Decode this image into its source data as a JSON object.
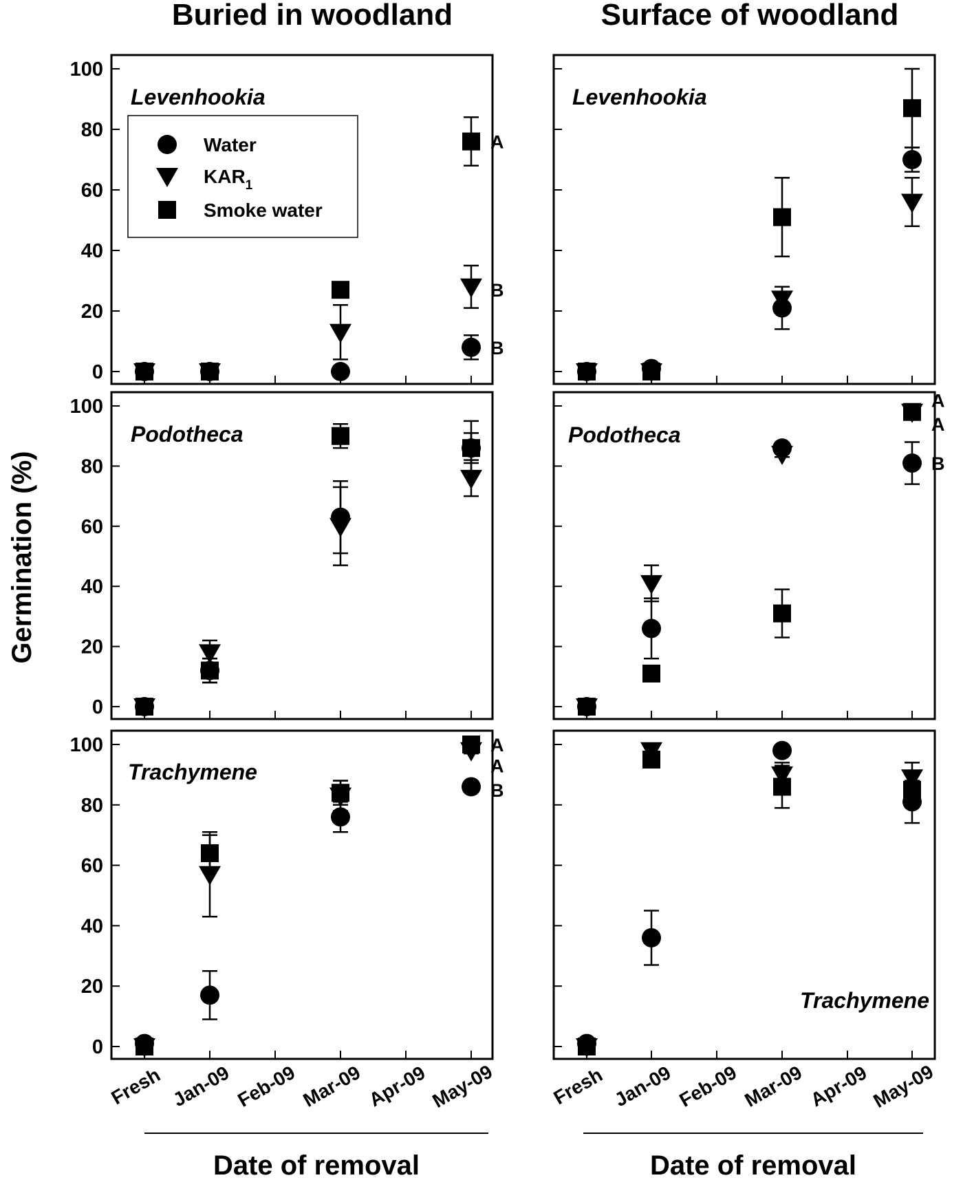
{
  "column_titles": [
    "Buried in woodland",
    "Surface of woodland"
  ],
  "y_axis_title": "Germination (%)",
  "x_axis_title": "Date of removal",
  "legend": {
    "entries": [
      {
        "label": "Water",
        "marker": "circle"
      },
      {
        "label": "KAR",
        "subscript": "1",
        "marker": "triangle-down"
      },
      {
        "label": "Smoke water",
        "marker": "square"
      }
    ]
  },
  "chart_data": [
    {
      "type": "scatter",
      "panel": "Buried in woodland / Levenhookia",
      "species": "Levenhookia",
      "categories": [
        "Fresh",
        "Jan-09",
        "Feb-09",
        "Mar-09",
        "Apr-09",
        "May-09"
      ],
      "ylim": [
        0,
        100
      ],
      "yticks": [
        0,
        20,
        40,
        60,
        80,
        100
      ],
      "series": [
        {
          "name": "Water",
          "marker": "circle",
          "x": [
            "Fresh",
            "Jan-09",
            "Mar-09",
            "May-09"
          ],
          "values": [
            0,
            0,
            0,
            8
          ],
          "err": [
            0,
            0,
            0,
            4
          ]
        },
        {
          "name": "KAR1",
          "marker": "triangle-down",
          "x": [
            "Fresh",
            "Jan-09",
            "Mar-09",
            "May-09"
          ],
          "values": [
            0,
            0,
            13,
            28
          ],
          "err": [
            0,
            0,
            9,
            7
          ]
        },
        {
          "name": "Smoke water",
          "marker": "square",
          "x": [
            "Fresh",
            "Jan-09",
            "Mar-09",
            "May-09"
          ],
          "values": [
            0,
            0,
            27,
            76
          ],
          "err": [
            0,
            0,
            2,
            8
          ]
        }
      ],
      "annotations": [
        {
          "x": "May-09",
          "y": 76,
          "text": "A"
        },
        {
          "x": "May-09",
          "y": 27,
          "text": "B"
        },
        {
          "x": "May-09",
          "y": 8,
          "text": "B"
        }
      ]
    },
    {
      "type": "scatter",
      "panel": "Surface of woodland / Levenhookia",
      "species": "Levenhookia",
      "categories": [
        "Fresh",
        "Jan-09",
        "Feb-09",
        "Mar-09",
        "Apr-09",
        "May-09"
      ],
      "ylim": [
        0,
        100
      ],
      "yticks": [
        0,
        20,
        40,
        60,
        80,
        100
      ],
      "series": [
        {
          "name": "Water",
          "marker": "circle",
          "x": [
            "Fresh",
            "Jan-09",
            "Mar-09",
            "May-09"
          ],
          "values": [
            0,
            1,
            21,
            70
          ],
          "err": [
            0,
            0,
            7,
            4
          ]
        },
        {
          "name": "KAR1",
          "marker": "triangle-down",
          "x": [
            "Fresh",
            "Jan-09",
            "Mar-09",
            "May-09"
          ],
          "values": [
            0,
            0,
            24,
            56
          ],
          "err": [
            0,
            0,
            4,
            8
          ]
        },
        {
          "name": "Smoke water",
          "marker": "square",
          "x": [
            "Fresh",
            "Jan-09",
            "Mar-09",
            "May-09"
          ],
          "values": [
            0,
            0,
            51,
            87
          ],
          "err": [
            0,
            0,
            13,
            13
          ]
        }
      ],
      "annotations": []
    },
    {
      "type": "scatter",
      "panel": "Buried in woodland / Podotheca",
      "species": "Podotheca",
      "categories": [
        "Fresh",
        "Jan-09",
        "Feb-09",
        "Mar-09",
        "Apr-09",
        "May-09"
      ],
      "ylim": [
        0,
        100
      ],
      "yticks": [
        0,
        20,
        40,
        60,
        80,
        100
      ],
      "series": [
        {
          "name": "Water",
          "marker": "circle",
          "x": [
            "Fresh",
            "Jan-09",
            "Mar-09",
            "May-09"
          ],
          "values": [
            0,
            12,
            63,
            86
          ],
          "err": [
            0,
            4,
            12,
            5
          ]
        },
        {
          "name": "KAR1",
          "marker": "triangle-down",
          "x": [
            "Fresh",
            "Jan-09",
            "Mar-09",
            "May-09"
          ],
          "values": [
            0,
            18,
            60,
            76
          ],
          "err": [
            0,
            4,
            13,
            6
          ]
        },
        {
          "name": "Smoke water",
          "marker": "square",
          "x": [
            "Fresh",
            "Jan-09",
            "Mar-09",
            "May-09"
          ],
          "values": [
            0,
            12,
            90,
            86
          ],
          "err": [
            0,
            4,
            4,
            9
          ]
        }
      ],
      "annotations": []
    },
    {
      "type": "scatter",
      "panel": "Surface of woodland / Podotheca",
      "species": "Podotheca",
      "categories": [
        "Fresh",
        "Jan-09",
        "Feb-09",
        "Mar-09",
        "Apr-09",
        "May-09"
      ],
      "ylim": [
        0,
        100
      ],
      "yticks": [
        0,
        20,
        40,
        60,
        80,
        100
      ],
      "series": [
        {
          "name": "Water",
          "marker": "circle",
          "x": [
            "Fresh",
            "Jan-09",
            "Mar-09",
            "May-09"
          ],
          "values": [
            0,
            26,
            86,
            81
          ],
          "err": [
            0,
            10,
            1,
            7
          ]
        },
        {
          "name": "KAR1",
          "marker": "triangle-down",
          "x": [
            "Fresh",
            "Jan-09",
            "Mar-09",
            "May-09"
          ],
          "values": [
            0,
            41,
            84,
            98
          ],
          "err": [
            0,
            6,
            1,
            1
          ]
        },
        {
          "name": "Smoke water",
          "marker": "square",
          "x": [
            "Fresh",
            "Jan-09",
            "Mar-09",
            "May-09"
          ],
          "values": [
            0,
            11,
            31,
            98
          ],
          "err": [
            0,
            1,
            8,
            1
          ]
        }
      ],
      "annotations": [
        {
          "x": "May-09",
          "y": 102,
          "text": "A"
        },
        {
          "x": "May-09",
          "y": 94,
          "text": "A"
        },
        {
          "x": "May-09",
          "y": 81,
          "text": "B"
        }
      ]
    },
    {
      "type": "scatter",
      "panel": "Buried in woodland / Trachymene",
      "species": "Trachymene",
      "categories": [
        "Fresh",
        "Jan-09",
        "Feb-09",
        "Mar-09",
        "Apr-09",
        "May-09"
      ],
      "ylim": [
        0,
        100
      ],
      "yticks": [
        0,
        20,
        40,
        60,
        80,
        100
      ],
      "series": [
        {
          "name": "Water",
          "marker": "circle",
          "x": [
            "Fresh",
            "Jan-09",
            "Mar-09",
            "May-09"
          ],
          "values": [
            1,
            17,
            76,
            86
          ],
          "err": [
            0,
            8,
            5,
            0
          ]
        },
        {
          "name": "KAR1",
          "marker": "triangle-down",
          "x": [
            "Fresh",
            "Jan-09",
            "Mar-09",
            "May-09"
          ],
          "values": [
            0,
            57,
            83,
            98
          ],
          "err": [
            0,
            14,
            5,
            1
          ]
        },
        {
          "name": "Smoke water",
          "marker": "square",
          "x": [
            "Fresh",
            "Jan-09",
            "Mar-09",
            "May-09"
          ],
          "values": [
            0,
            64,
            84,
            100
          ],
          "err": [
            0,
            6,
            4,
            1
          ]
        }
      ],
      "annotations": [
        {
          "x": "May-09",
          "y": 100,
          "text": "A"
        },
        {
          "x": "May-09",
          "y": 93,
          "text": "A"
        },
        {
          "x": "May-09",
          "y": 85,
          "text": "B"
        }
      ]
    },
    {
      "type": "scatter",
      "panel": "Surface of woodland / Trachymene",
      "species": "Trachymene",
      "categories": [
        "Fresh",
        "Jan-09",
        "Feb-09",
        "Mar-09",
        "Apr-09",
        "May-09"
      ],
      "ylim": [
        0,
        100
      ],
      "yticks": [
        0,
        20,
        40,
        60,
        80,
        100
      ],
      "series": [
        {
          "name": "Water",
          "marker": "circle",
          "x": [
            "Fresh",
            "Jan-09",
            "Mar-09",
            "May-09"
          ],
          "values": [
            1,
            36,
            98,
            81
          ],
          "err": [
            0,
            9,
            1,
            7
          ]
        },
        {
          "name": "KAR1",
          "marker": "triangle-down",
          "x": [
            "Fresh",
            "Jan-09",
            "Mar-09",
            "May-09"
          ],
          "values": [
            0,
            98,
            90,
            89
          ],
          "err": [
            0,
            1,
            4,
            5
          ]
        },
        {
          "name": "Smoke water",
          "marker": "square",
          "x": [
            "Fresh",
            "Jan-09",
            "Mar-09",
            "May-09"
          ],
          "values": [
            0,
            95,
            86,
            85
          ],
          "err": [
            0,
            1,
            7,
            5
          ]
        }
      ],
      "annotations": []
    }
  ]
}
